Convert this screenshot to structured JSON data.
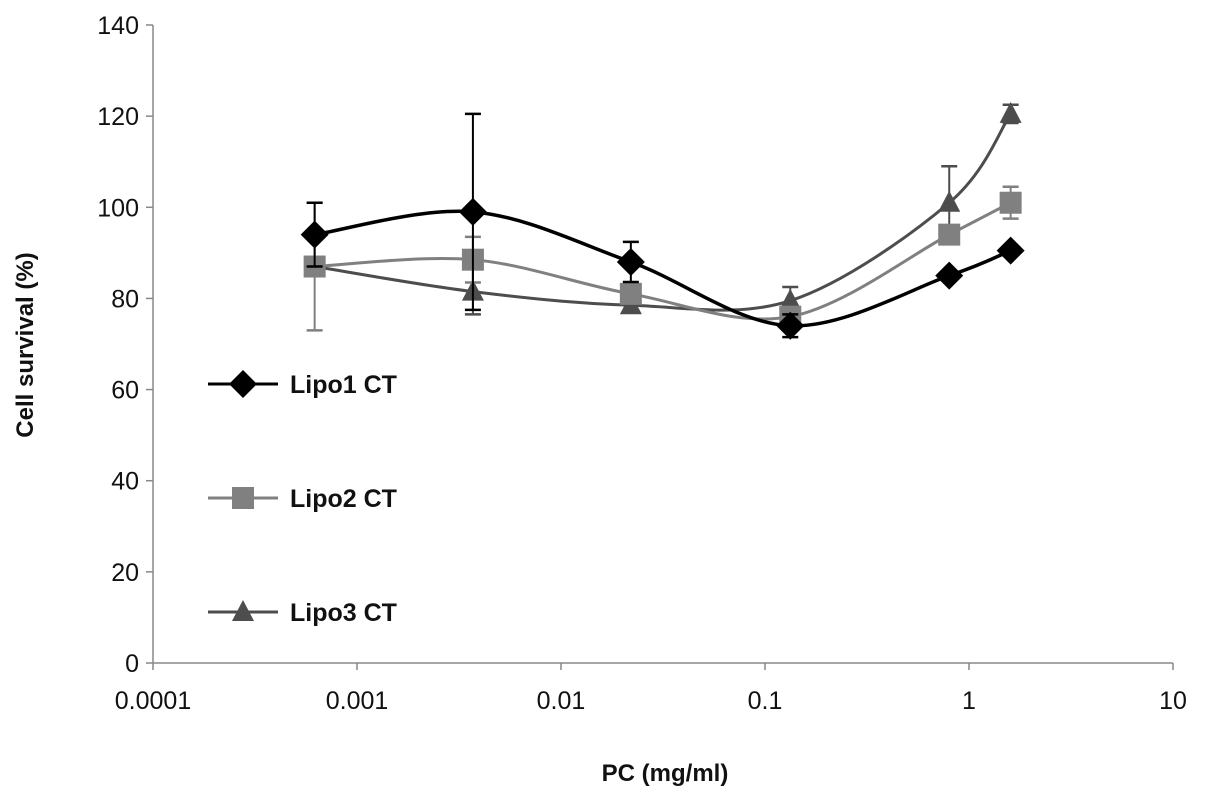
{
  "chart_data": {
    "type": "line",
    "xlabel": "PC (mg/ml)",
    "ylabel": "Cell survival (%)",
    "xscale": "log",
    "xlim": [
      0.0001,
      10
    ],
    "ylim": [
      0,
      140
    ],
    "xticks": [
      "0.0001",
      "0.001",
      "0.01",
      "0.1",
      "1",
      "10"
    ],
    "yticks": [
      "0",
      "20",
      "40",
      "60",
      "80",
      "100",
      "120",
      "140"
    ],
    "grid": false,
    "legend_placement": "left",
    "smoothed": true,
    "x": [
      0.00062,
      0.0037,
      0.022,
      0.133,
      0.8,
      1.6
    ],
    "series": [
      {
        "name": "Lipo1 CT",
        "marker": "diamond",
        "color": "#000000",
        "values": [
          94,
          99,
          88,
          74,
          85,
          90.5
        ],
        "errors": [
          7,
          21.5,
          4.4,
          2.5,
          0,
          0
        ]
      },
      {
        "name": "Lipo2 CT",
        "marker": "square",
        "color": "#808080",
        "values": [
          87,
          88.5,
          81,
          76,
          94,
          101
        ],
        "errors": [
          14,
          5,
          0,
          0,
          0,
          3.5
        ]
      },
      {
        "name": "Lipo3 CT",
        "marker": "triangle",
        "color": "#4d4d4d",
        "values": [
          87,
          81.5,
          78.5,
          79.5,
          101,
          120.5
        ],
        "errors": [
          0,
          5,
          0,
          3,
          8,
          2
        ]
      }
    ]
  }
}
